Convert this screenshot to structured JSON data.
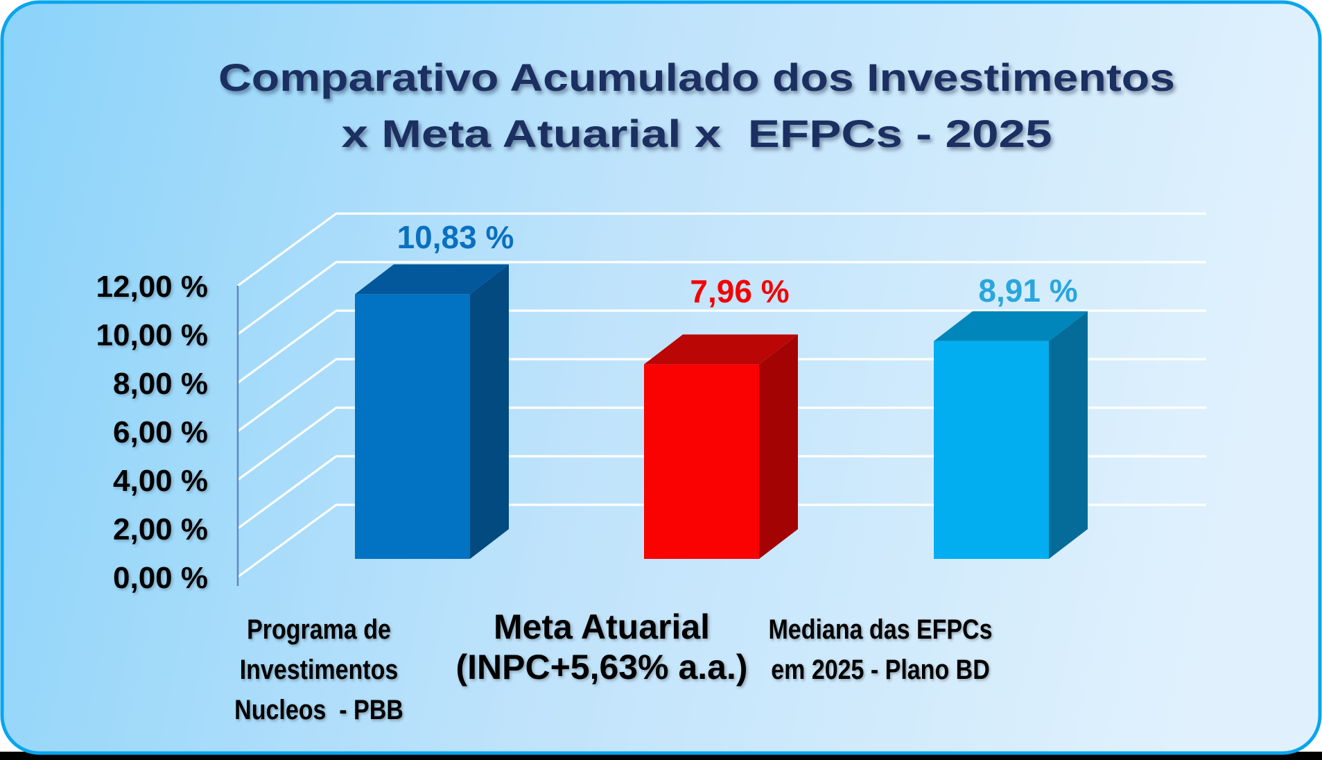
{
  "title": {
    "line1": "Comparativo Acumulado dos Investimentos",
    "line2": "x Meta Atuarial x  EFPCs - 2025"
  },
  "chart_data": {
    "type": "bar",
    "projection": "3d",
    "title": "Comparativo Acumulado dos Investimentos x Meta Atuarial x  EFPCs - 2025",
    "categories": [
      "Programa de Investimentos Nucleos  - PBB",
      "Meta Atuarial (INPC+5,63% a.a.)",
      "Mediana das EFPCs em 2025 - Plano BD"
    ],
    "category_lines": [
      [
        "Programa de",
        "Investimentos",
        "Nucleos  - PBB"
      ],
      [
        "Meta Atuarial",
        "(INPC+5,63% a.a.)"
      ],
      [
        "Mediana das EFPCs",
        "em 2025 - Plano BD"
      ]
    ],
    "values": [
      10.83,
      7.96,
      8.91
    ],
    "value_labels": [
      "10,83 %",
      "7,96 %",
      "8,91 %"
    ],
    "ylim": [
      0,
      12
    ],
    "ytick_step": 2,
    "ytick_labels": [
      "12,00 %",
      "10,00 %",
      "8,00 %",
      "6,00 %",
      "4,00 %",
      "2,00 %",
      "0,00 %"
    ],
    "grid": true,
    "legend": false,
    "bar_colors": [
      {
        "front": "#0272C2",
        "top": "#03589B",
        "side": "#024A80",
        "label": "#0A70C0"
      },
      {
        "front": "#FA0202",
        "top": "#BB0606",
        "side": "#A40303",
        "label": "#F20202"
      },
      {
        "front": "#03AEF0",
        "top": "#0186BB",
        "side": "#056C99",
        "label": "#29A6DE"
      }
    ]
  },
  "style": {
    "background_left": "#8BD3FA",
    "background_mid": "#BFE3FB",
    "background_right": "#E0F1FD",
    "panel_border": "#0AA5EC",
    "gridline": "#FFFFFF",
    "axis_line": "#5E88BE",
    "title_color": "#1B3061",
    "tick_label_color": "#000000",
    "category_label_color": "#000000",
    "bottom_strip": "#000000"
  }
}
